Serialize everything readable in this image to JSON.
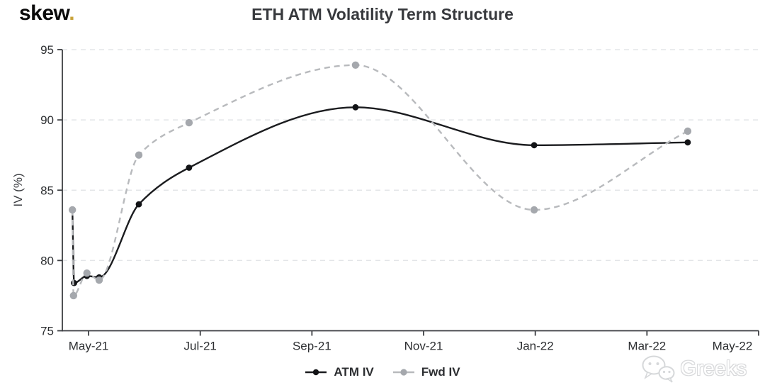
{
  "header": {
    "logo_text": "skew",
    "logo_dot": ".",
    "logo_dot_color": "#c9a33b"
  },
  "watermark": {
    "text": "Greeks",
    "icon": "wechat-icon"
  },
  "chart_data": {
    "type": "line",
    "title": "ETH ATM Volatility Term Structure",
    "xlabel": "",
    "ylabel": "IV (%)",
    "ylim": [
      75,
      95
    ],
    "y_ticks": [
      75,
      80,
      85,
      90,
      95
    ],
    "xlim_months": [
      -0.47,
      12.0
    ],
    "x_ticks": [
      {
        "label": "May-21",
        "m": 0
      },
      {
        "label": "Jul-21",
        "m": 2
      },
      {
        "label": "Sep-21",
        "m": 4
      },
      {
        "label": "Nov-21",
        "m": 6
      },
      {
        "label": "Jan-22",
        "m": 8
      },
      {
        "label": "Mar-22",
        "m": 10
      },
      {
        "label": "May-22",
        "m": 12,
        "label_dx": -37
      }
    ],
    "grid": "horizontal-dashed",
    "legend_position": "bottom-center",
    "axis_color": "#3c3e42",
    "grid_color": "#e3e5e8",
    "text_color": "#2c2e31",
    "series": [
      {
        "name": "ATM IV",
        "color": "#1b1c1f",
        "marker_color": "#121316",
        "line_style": "solid",
        "marker_radius": 4.4,
        "x_months": [
          -0.29,
          -0.26,
          -0.03,
          0.19,
          0.9,
          1.8,
          4.78,
          7.98,
          10.73
        ],
        "values": [
          83.6,
          78.4,
          78.9,
          78.8,
          84.0,
          86.6,
          90.9,
          88.2,
          88.4
        ]
      },
      {
        "name": "Fwd IV",
        "color": "#b8babd",
        "marker_color": "#a5a8ad",
        "line_style": "dashed",
        "dash": "8 6",
        "marker_radius": 5.2,
        "x_months": [
          -0.29,
          -0.27,
          -0.03,
          0.19,
          0.9,
          1.8,
          4.78,
          7.98,
          10.73
        ],
        "values": [
          83.6,
          77.5,
          79.1,
          78.6,
          87.5,
          89.8,
          93.9,
          83.6,
          89.2
        ]
      }
    ]
  }
}
